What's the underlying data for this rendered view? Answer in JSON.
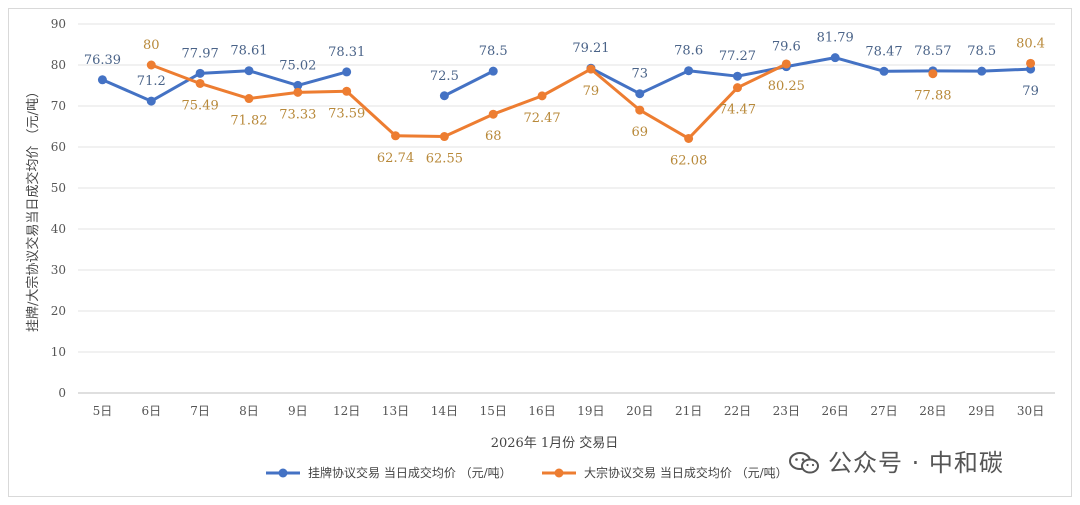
{
  "chart_data": {
    "type": "line",
    "categories": [
      "5日",
      "6日",
      "7日",
      "8日",
      "9日",
      "12日",
      "13日",
      "14日",
      "15日",
      "16日",
      "19日",
      "20日",
      "21日",
      "22日",
      "23日",
      "26日",
      "27日",
      "28日",
      "29日",
      "30日"
    ],
    "series": [
      {
        "name": "挂牌协议交易 当日成交均价 （元/吨）",
        "color": "#4472c4",
        "values": [
          76.39,
          71.2,
          77.97,
          78.61,
          75.02,
          78.31,
          null,
          72.5,
          78.5,
          null,
          79.21,
          73,
          78.6,
          77.27,
          79.6,
          81.79,
          78.47,
          78.57,
          78.5,
          79
        ]
      },
      {
        "name": "大宗协议交易 当日成交均价 （元/吨）",
        "color": "#ed7d31",
        "values": [
          null,
          80,
          75.49,
          71.82,
          73.33,
          73.59,
          62.74,
          62.55,
          68,
          72.47,
          79,
          69,
          62.08,
          74.47,
          80.25,
          null,
          null,
          77.88,
          null,
          80.4
        ]
      }
    ],
    "xlabel": "2026年 1月份 交易日",
    "ylabel": "挂牌/大宗协议交易当日成交均价 （元/吨）",
    "ylim": [
      0,
      90
    ],
    "yticks": [
      0,
      10,
      20,
      30,
      40,
      50,
      60,
      70,
      80,
      90
    ],
    "grid": true,
    "legend": "bottom",
    "data_labels": {
      "series0": [
        "76.39",
        "71.2",
        "77.97",
        "78.61",
        "75.02",
        "78.31",
        null,
        "72.5",
        "78.5",
        null,
        "79.21",
        "73",
        "78.6",
        "77.27",
        "79.6",
        "81.79",
        "78.47",
        "78.57",
        "78.5",
        "79"
      ],
      "series1": [
        null,
        "80",
        "75.49",
        "71.82",
        "73.33",
        "73.59",
        "62.74",
        "62.55",
        "68",
        "72.47",
        "79",
        "69",
        "62.08",
        "74.47",
        "80.25",
        null,
        null,
        "77.88",
        null,
        "80.4"
      ]
    }
  },
  "watermark": {
    "text": "公众号 · 中和碳",
    "icon": "wechat-icon"
  }
}
